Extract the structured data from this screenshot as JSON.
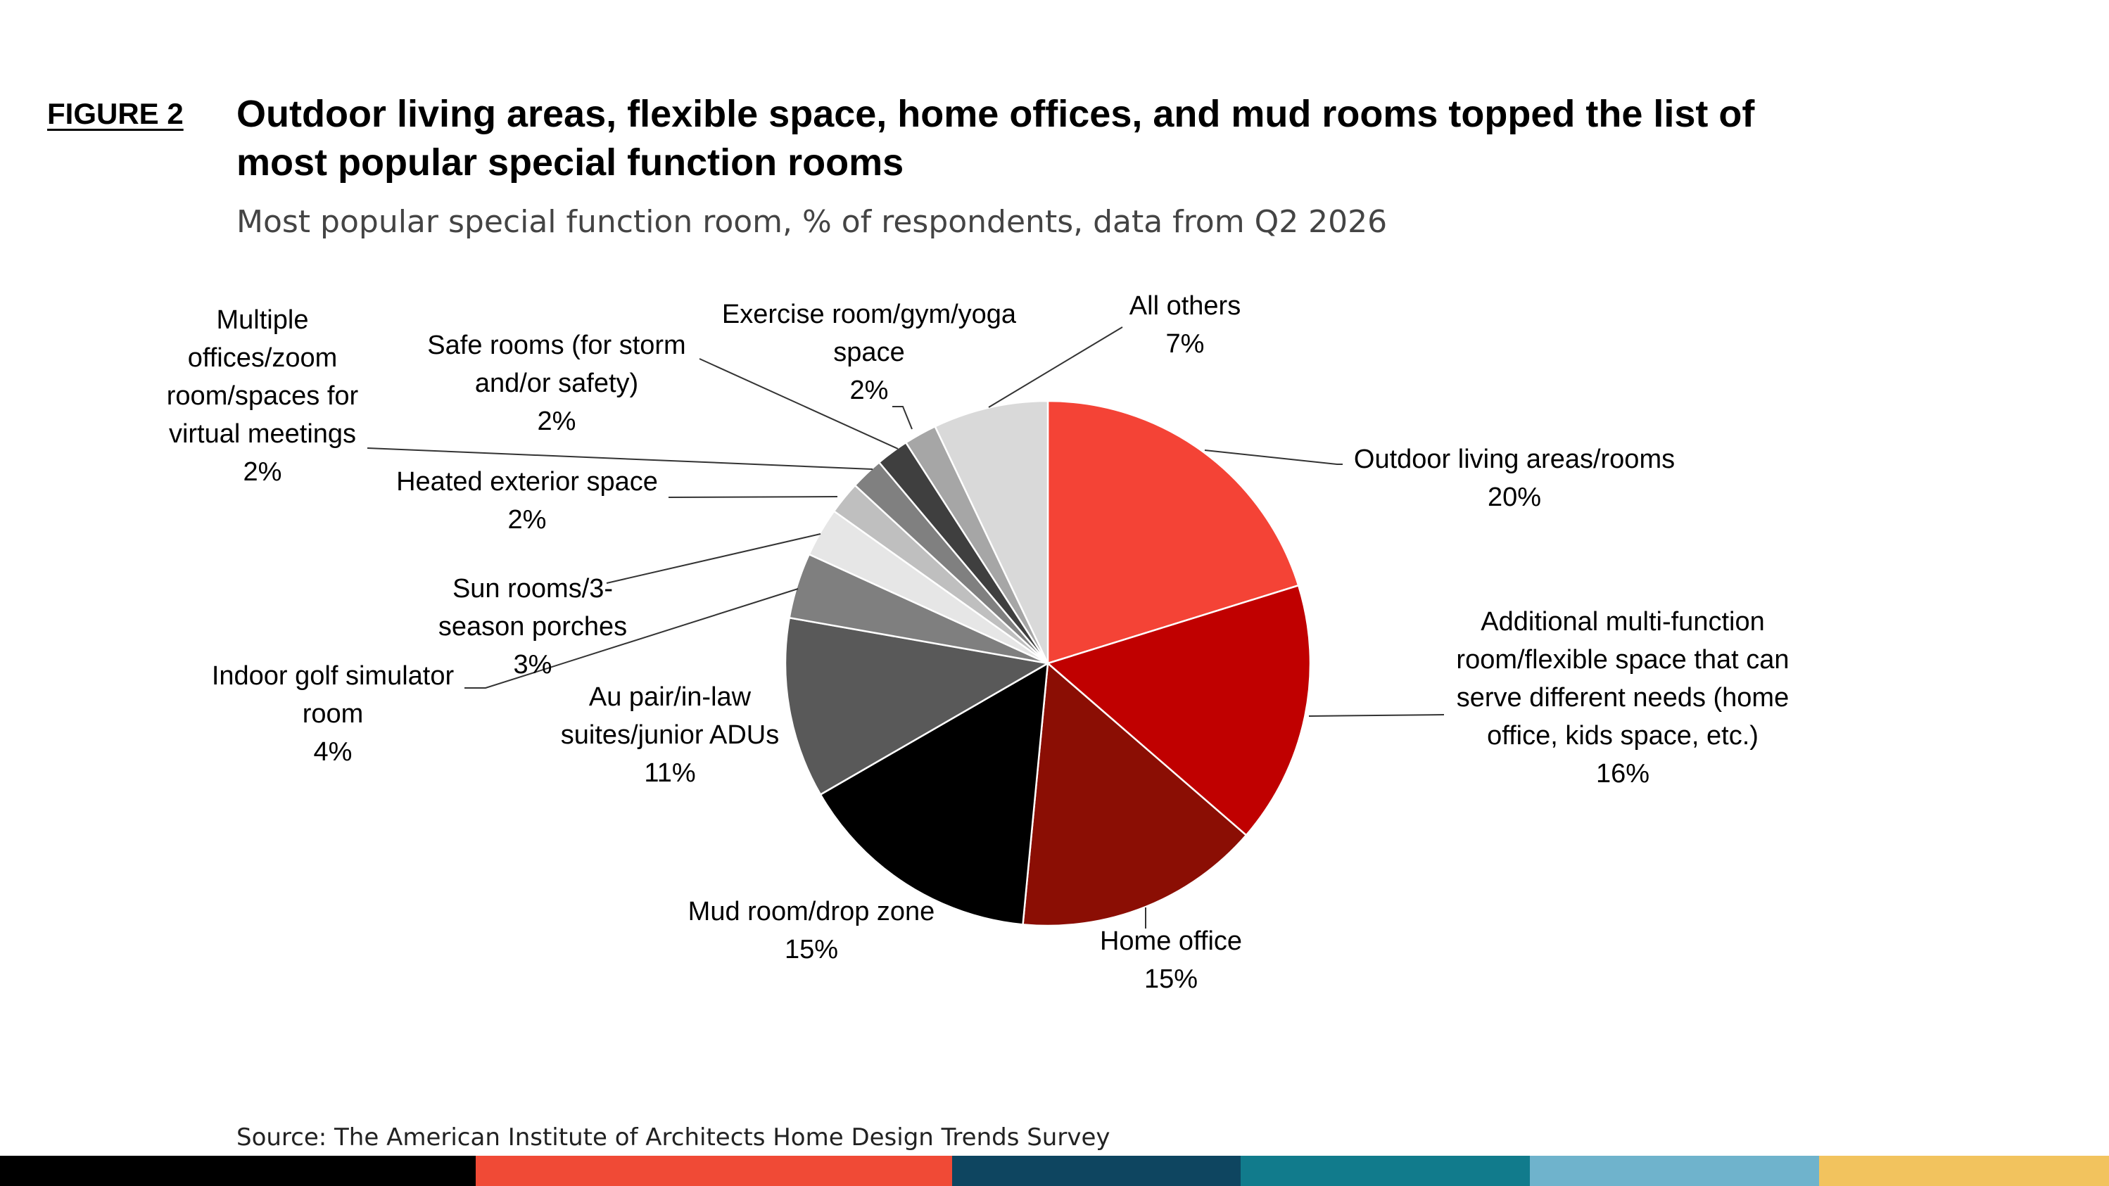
{
  "figure_label": "FIGURE 2",
  "title": "Outdoor living areas, flexible space, home offices, and mud rooms topped the list of most popular special function rooms",
  "subtitle": "Most popular special function room, % of respondents, data from Q2 2026",
  "source": "Source: The American Institute of Architects Home Design Trends Survey",
  "bottom_bar_colors": [
    "#000000",
    "#f04a36",
    "#0e4560",
    "#117b8c",
    "#6fb3cc",
    "#f2c35e"
  ],
  "chart_data": {
    "type": "pie",
    "start": "12 o'clock, clockwise",
    "slices": [
      {
        "lines": [
          "Outdoor living areas/rooms"
        ],
        "pct_label": "20%",
        "value": 20,
        "color": "#f44336"
      },
      {
        "lines": [
          "Additional multi-function",
          "room/flexible space that can",
          "serve different needs (home",
          "office, kids space, etc.)"
        ],
        "pct_label": "16%",
        "value": 16,
        "color": "#c00000"
      },
      {
        "lines": [
          "Home office"
        ],
        "pct_label": "15%",
        "value": 15,
        "color": "#8b0e04"
      },
      {
        "lines": [
          "Mud room/drop zone"
        ],
        "pct_label": "15%",
        "value": 15,
        "color": "#000000"
      },
      {
        "lines": [
          "Au pair/in-law",
          "suites/junior ADUs"
        ],
        "pct_label": "11%",
        "value": 11,
        "color": "#595959"
      },
      {
        "lines": [
          "Indoor golf simulator",
          "room"
        ],
        "pct_label": "4%",
        "value": 4,
        "color": "#7f7f7f"
      },
      {
        "lines": [
          "Sun rooms/3-",
          "season porches"
        ],
        "pct_label": "3%",
        "value": 3,
        "color": "#e6e6e6"
      },
      {
        "lines": [
          "Heated exterior space"
        ],
        "pct_label": "2%",
        "value": 2,
        "color": "#bfbfbf"
      },
      {
        "lines": [
          "Multiple",
          "offices/zoom",
          "room/spaces for",
          "virtual meetings"
        ],
        "pct_label": "2%",
        "value": 2,
        "color": "#808080"
      },
      {
        "lines": [
          "Safe rooms (for storm",
          "and/or safety)"
        ],
        "pct_label": "2%",
        "value": 2,
        "color": "#3f3f3f"
      },
      {
        "lines": [
          "Exercise room/gym/yoga",
          "space"
        ],
        "pct_label": "2%",
        "value": 2,
        "color": "#a6a6a6"
      },
      {
        "lines": [
          "All others"
        ],
        "pct_label": "7%",
        "value": 7,
        "color": "#d9d9d9"
      }
    ]
  }
}
